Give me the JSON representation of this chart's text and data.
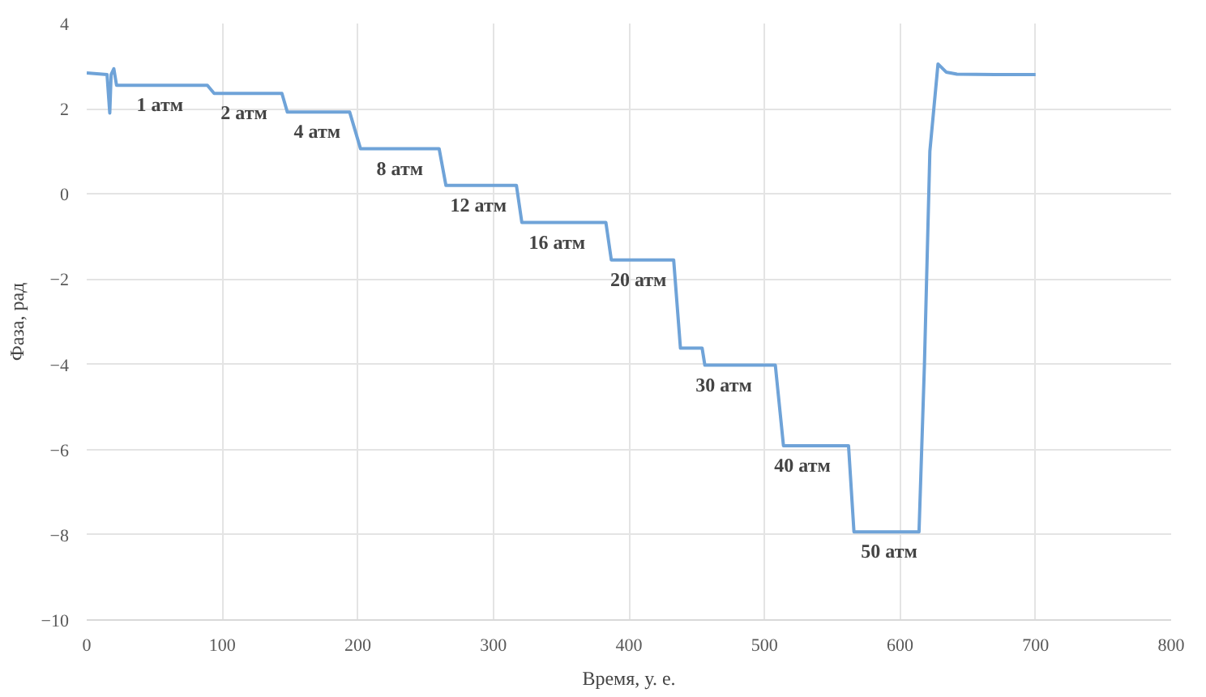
{
  "chart_data": {
    "type": "line",
    "xlabel": "Время, у. е.",
    "ylabel": "Фаза, рад",
    "xlim": [
      0,
      800
    ],
    "xticks": [
      0,
      100,
      200,
      300,
      400,
      500,
      600,
      700,
      800
    ],
    "ylim": [
      -10,
      4
    ],
    "yticks": [
      -10,
      -8,
      -6,
      -4,
      -2,
      0,
      2,
      4
    ],
    "grid": true,
    "series": [
      {
        "color": "#6fa3d8",
        "x": [
          0,
          15,
          17,
          18,
          20,
          22,
          89,
          94,
          144,
          148,
          194,
          202,
          260,
          265,
          317,
          321,
          383,
          387,
          433,
          438,
          454,
          456,
          508,
          514,
          562,
          566,
          614,
          618,
          622,
          628,
          634,
          642,
          670,
          700
        ],
        "values": [
          2.84,
          2.8,
          1.9,
          2.8,
          2.94,
          2.55,
          2.55,
          2.36,
          2.36,
          1.92,
          1.92,
          1.06,
          1.06,
          0.2,
          0.2,
          -0.67,
          -0.67,
          -1.55,
          -1.55,
          -3.62,
          -3.62,
          -4.02,
          -4.02,
          -5.91,
          -5.91,
          -7.93,
          -7.93,
          -4.0,
          1.0,
          3.05,
          2.86,
          2.81,
          2.8,
          2.8
        ]
      }
    ],
    "annotations": [
      {
        "text": "1 атм",
        "x": 54,
        "y": 2.55
      },
      {
        "text": "2 атм",
        "x": 116,
        "y": 2.36
      },
      {
        "text": "4 атм",
        "x": 170,
        "y": 1.92
      },
      {
        "text": "8 атм",
        "x": 231,
        "y": 1.06
      },
      {
        "text": "12 атм",
        "x": 289,
        "y": 0.2
      },
      {
        "text": "16 атм",
        "x": 347,
        "y": -0.67
      },
      {
        "text": "20 атм",
        "x": 407,
        "y": -1.55
      },
      {
        "text": "30 атм",
        "x": 470,
        "y": -4.02
      },
      {
        "text": "40 атм",
        "x": 528,
        "y": -5.91
      },
      {
        "text": "50 атм",
        "x": 592,
        "y": -7.93
      }
    ]
  }
}
